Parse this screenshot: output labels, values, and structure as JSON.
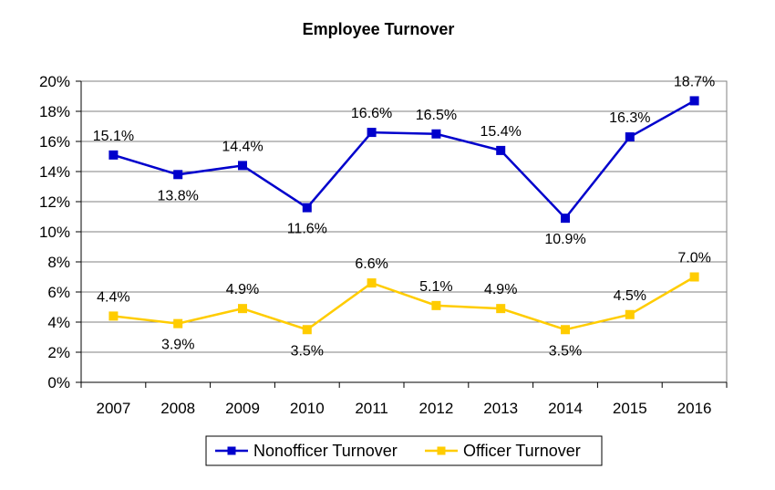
{
  "chart_data": {
    "type": "line",
    "title": "Employee Turnover",
    "xlabel": "",
    "ylabel": "",
    "categories": [
      "2007",
      "2008",
      "2009",
      "2010",
      "2011",
      "2012",
      "2013",
      "2014",
      "2015",
      "2016"
    ],
    "ylim": [
      0,
      20
    ],
    "y_ticks": [
      "0%",
      "2%",
      "4%",
      "6%",
      "8%",
      "10%",
      "12%",
      "14%",
      "16%",
      "18%",
      "20%"
    ],
    "grid": true,
    "legend_position": "bottom",
    "series": [
      {
        "name": "Nonofficer Turnover",
        "color": "#0000CC",
        "marker": "square",
        "values": [
          15.1,
          13.8,
          14.4,
          11.6,
          16.6,
          16.5,
          15.4,
          10.9,
          16.3,
          18.7
        ],
        "labels": [
          "15.1%",
          "13.8%",
          "14.4%",
          "11.6%",
          "16.6%",
          "16.5%",
          "15.4%",
          "10.9%",
          "16.3%",
          "18.7%"
        ]
      },
      {
        "name": "Officer Turnover",
        "color": "#FFCC00",
        "marker": "square",
        "values": [
          4.4,
          3.9,
          4.9,
          3.5,
          6.6,
          5.1,
          4.9,
          3.5,
          4.5,
          7.0
        ],
        "labels": [
          "4.4%",
          "3.9%",
          "4.9%",
          "3.5%",
          "6.6%",
          "5.1%",
          "4.9%",
          "3.5%",
          "4.5%",
          "7.0%"
        ]
      }
    ]
  }
}
